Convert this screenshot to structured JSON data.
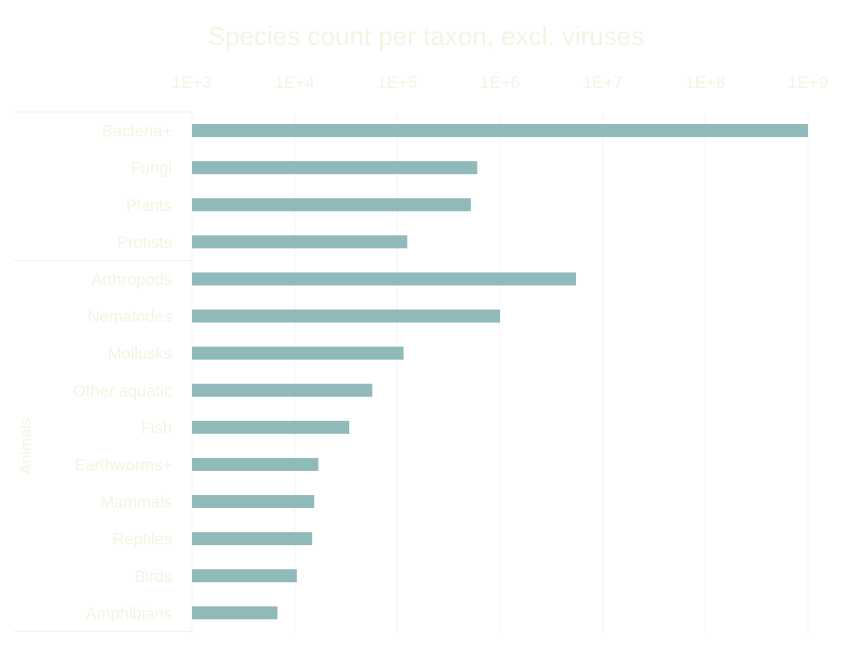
{
  "chart_data": {
    "type": "bar",
    "orientation": "horizontal",
    "title": "Species count per taxon, excl. viruses",
    "xscale": "log",
    "xlim": [
      1000,
      1000000000
    ],
    "x_ticks": [
      "1E+3",
      "1E+4",
      "1E+5",
      "1E+6",
      "1E+7",
      "1E+8",
      "1E+9"
    ],
    "x_tick_values": [
      1000,
      10000,
      100000,
      1000000,
      10000000,
      100000000,
      1000000000
    ],
    "grid": true,
    "categories": [
      "Bacteria+",
      "Fungi",
      "Plants",
      "Protists",
      "Arthropods",
      "Nematodes",
      "Mollusks",
      "Other aquatic",
      "Fish",
      "Earthworms+",
      "Mammals",
      "Reptiles",
      "Birds",
      "Amphibians"
    ],
    "values": [
      1000000000,
      600000,
      520000,
      125000,
      5500000,
      1000000,
      115000,
      57000,
      34000,
      17000,
      15500,
      14800,
      10500,
      6800
    ],
    "groups": [
      {
        "label": "",
        "categories": [
          "Bacteria+",
          "Fungi",
          "Plants",
          "Protists"
        ]
      },
      {
        "label": "Animals",
        "categories": [
          "Arthropods",
          "Nematodes",
          "Mollusks",
          "Other aquatic",
          "Fish",
          "Earthworms+",
          "Mammals",
          "Reptiles",
          "Birds",
          "Amphibians"
        ]
      }
    ],
    "colors": {
      "bar": "#8fbab9",
      "text": "#f5f3e2",
      "grid": "#f4f4f4",
      "divider": "#f0f0ea"
    }
  }
}
